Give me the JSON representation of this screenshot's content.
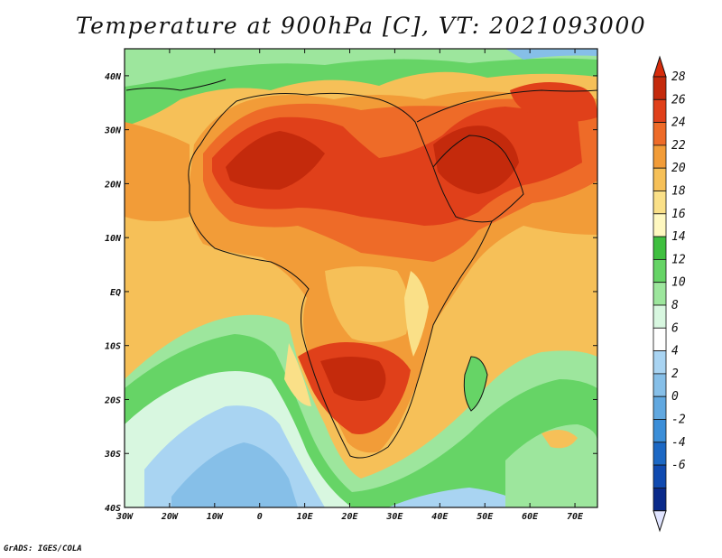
{
  "title": "Temperature at 900hPa [C], VT: 2021093000",
  "credit": "GrADS: IGES/COLA",
  "map": {
    "lon_range": [
      -30,
      75
    ],
    "lat_range": [
      -40,
      45
    ],
    "lon_ticks": [
      "30W",
      "20W",
      "10W",
      "0",
      "10E",
      "20E",
      "30E",
      "40E",
      "50E",
      "60E",
      "70E"
    ],
    "lat_ticks": [
      "40N",
      "30N",
      "20N",
      "10N",
      "EQ",
      "10S",
      "20S",
      "30S",
      "40S"
    ]
  },
  "colorbar": {
    "labels": [
      "28",
      "26",
      "24",
      "22",
      "20",
      "18",
      "16",
      "14",
      "12",
      "10",
      "8",
      "6",
      "4",
      "2",
      "0",
      "-2",
      "-4",
      "-6"
    ],
    "colors": [
      "#c42a0c",
      "#e0401a",
      "#ee6b28",
      "#f29c38",
      "#f6c058",
      "#fae088",
      "#fff8c0",
      "#3fbf3f",
      "#66d466",
      "#9de69d",
      "#d8f7e0",
      "#ffffff",
      "#a9d4f2",
      "#86bfe8",
      "#61a8e0",
      "#3b8ed8",
      "#1c68c4",
      "#104ab0",
      "#0a2a8a"
    ],
    "top_color": "#d62c0c",
    "bottom_color": "#e0e4ff"
  }
}
